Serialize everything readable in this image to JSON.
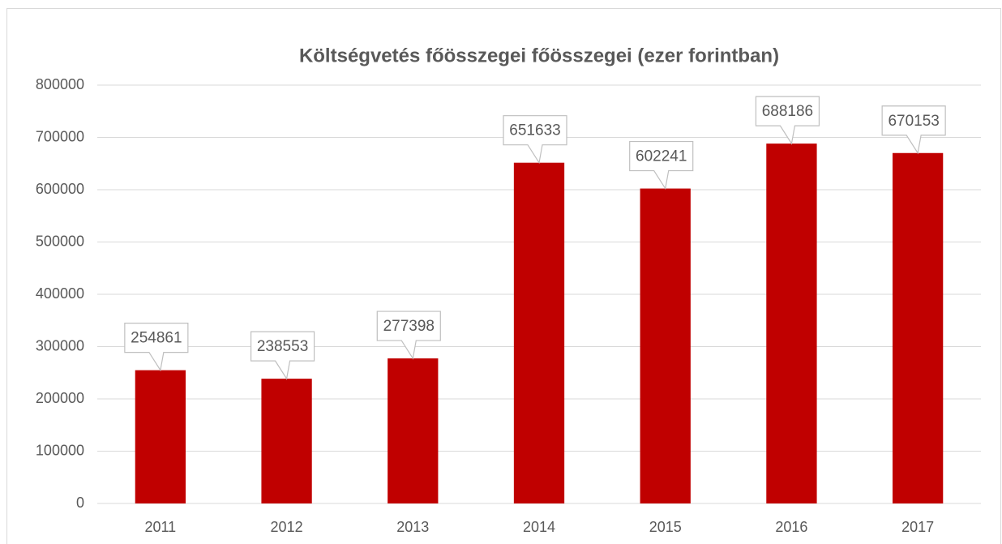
{
  "chart_data": {
    "type": "bar",
    "title": "Költségvetés főösszegei főösszegei (ezer forintban)",
    "categories": [
      "2011",
      "2012",
      "2013",
      "2014",
      "2015",
      "2016",
      "2017"
    ],
    "values": [
      254861,
      238553,
      277398,
      651633,
      602241,
      688186,
      670153
    ],
    "color": "#c00000",
    "ylim": [
      0,
      800000
    ],
    "yticks": [
      0,
      100000,
      200000,
      300000,
      400000,
      500000,
      600000,
      700000,
      800000
    ],
    "grid": true
  }
}
